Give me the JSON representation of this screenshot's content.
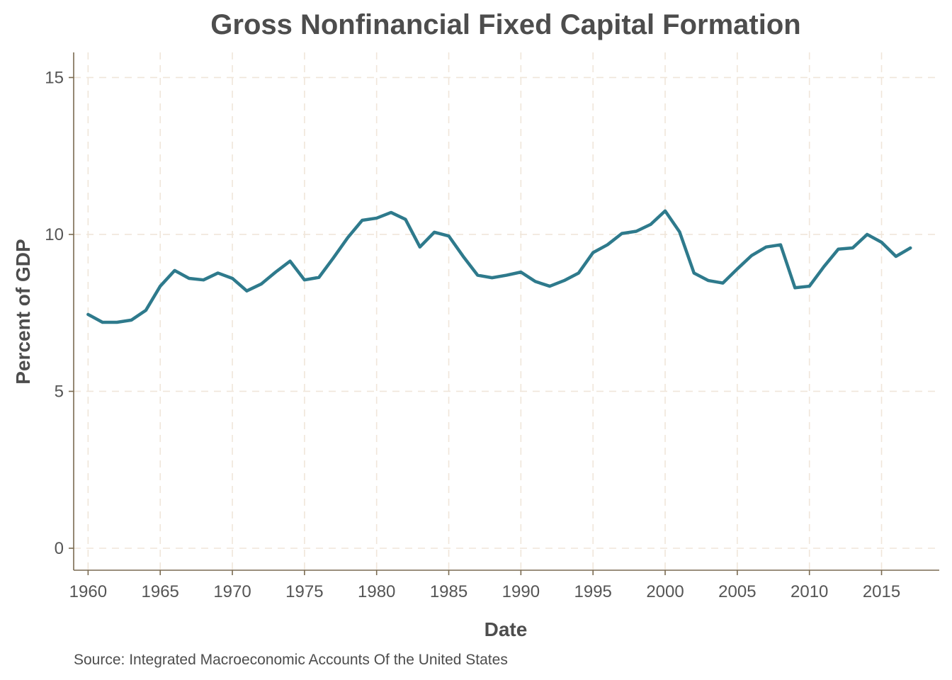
{
  "chart_data": {
    "type": "line",
    "title": "Gross Nonfinancial Fixed Capital Formation",
    "xlabel": "Date",
    "ylabel": "Percent of GDP",
    "caption": "Source: Integrated Macroeconomic Accounts Of the United States",
    "xlim": [
      1959,
      2019
    ],
    "ylim": [
      -0.7,
      15.8
    ],
    "x_ticks": [
      1960,
      1965,
      1970,
      1975,
      1980,
      1985,
      1990,
      1995,
      2000,
      2005,
      2010,
      2015
    ],
    "y_ticks": [
      0,
      5,
      10,
      15
    ],
    "grid": true,
    "line_color": "#2e7a8c",
    "series": [
      {
        "x": [
          1960,
          1961,
          1962,
          1963,
          1964,
          1965,
          1966,
          1967,
          1968,
          1969,
          1970,
          1971,
          1972,
          1973,
          1974,
          1975,
          1976,
          1977,
          1978,
          1979,
          1980,
          1981,
          1982,
          1983,
          1984,
          1985,
          1986,
          1987,
          1988,
          1989,
          1990,
          1991,
          1992,
          1993,
          1994,
          1995,
          1996,
          1997,
          1998,
          1999,
          2000,
          2001,
          2002,
          2003,
          2004,
          2005,
          2006,
          2007,
          2008,
          2009,
          2010,
          2011,
          2012,
          2013,
          2014,
          2015,
          2016,
          2017
        ],
        "values": [
          7.45,
          7.2,
          7.2,
          7.27,
          7.58,
          8.35,
          8.85,
          8.6,
          8.55,
          8.77,
          8.6,
          8.2,
          8.42,
          8.8,
          9.15,
          8.55,
          8.63,
          9.25,
          9.9,
          10.45,
          10.52,
          10.7,
          10.48,
          9.6,
          10.07,
          9.95,
          9.3,
          8.7,
          8.62,
          8.7,
          8.8,
          8.5,
          8.35,
          8.53,
          8.77,
          9.42,
          9.67,
          10.03,
          10.1,
          10.32,
          10.75,
          10.08,
          8.77,
          8.53,
          8.45,
          8.9,
          9.33,
          9.6,
          9.67,
          8.3,
          8.35,
          8.97,
          9.53,
          9.57,
          10.0,
          9.75,
          9.3,
          9.57
        ]
      }
    ]
  }
}
